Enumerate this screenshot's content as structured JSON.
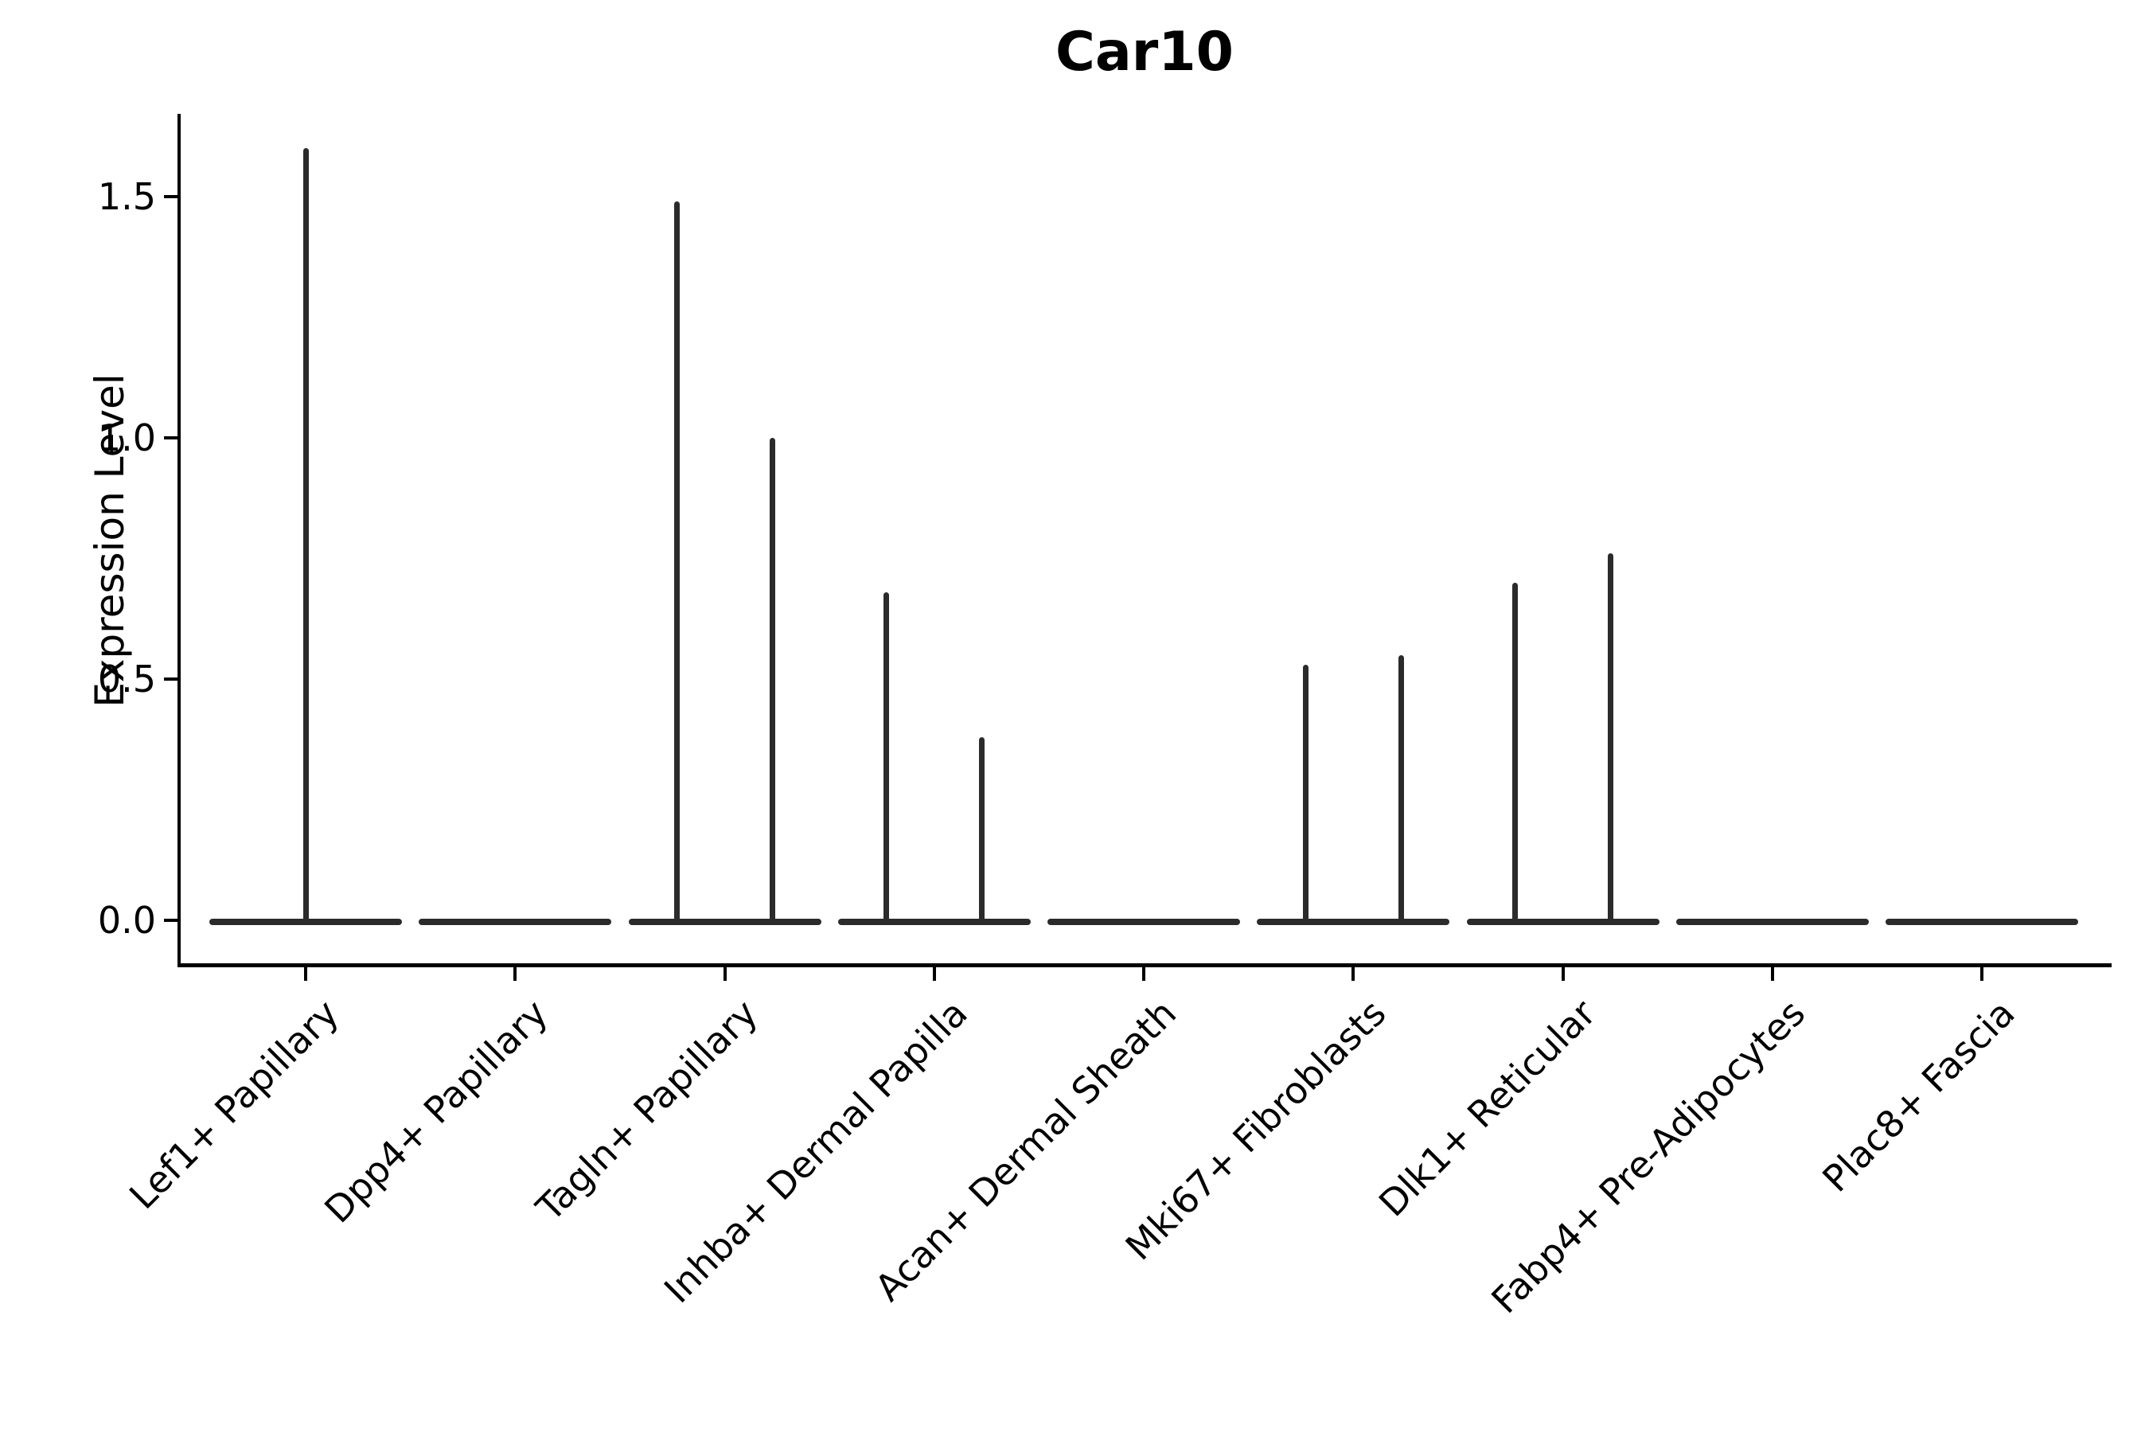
{
  "title": "Car10",
  "y_axis": {
    "label": "Expression Level",
    "ticks": [
      {
        "value": 0.0,
        "label": "0.0"
      },
      {
        "value": 0.5,
        "label": "0.5"
      },
      {
        "value": 1.0,
        "label": "1.0"
      },
      {
        "value": 1.5,
        "label": "1.5"
      }
    ]
  },
  "colors": {
    "violin": "#2b2b2b",
    "axis": "#000000",
    "text": "#000000",
    "background": "#ffffff"
  },
  "chart_data": {
    "type": "violin",
    "title": "Car10",
    "xlabel": "",
    "ylabel": "Expression Level",
    "ylim": [
      -0.09,
      1.67
    ],
    "yticks": [
      0.0,
      0.5,
      1.0,
      1.5
    ],
    "grid": false,
    "legend": false,
    "categories": [
      "Lef1+ Papillary",
      "Dpp4+ Papillary",
      "Tagln+ Papillary",
      "Inhba+ Dermal Papilla",
      "Acan+ Dermal Sheath",
      "Mki67+ Fibroblasts",
      "Dlk1+ Reticular",
      "Fabp4+ Pre-Adipocytes",
      "Plac8+ Fascia"
    ],
    "description": "Violin plot of Car10 expression; each group shows a flat density pancake at 0 with thin vertical spikes up to the maximum expressed values. dx is the horizontal spike offset (px) from the group center.",
    "violins": [
      {
        "category": "Lef1+ Papillary",
        "baseline": 0,
        "spikes": [
          {
            "dx": 0,
            "max": 1.6
          }
        ]
      },
      {
        "category": "Dpp4+ Papillary",
        "baseline": 0,
        "spikes": []
      },
      {
        "category": "Tagln+ Papillary",
        "baseline": 0,
        "spikes": [
          {
            "dx": -60,
            "max": 1.49
          },
          {
            "dx": 60,
            "max": 1.0
          }
        ]
      },
      {
        "category": "Inhba+ Dermal Papilla",
        "baseline": 0,
        "spikes": [
          {
            "dx": -60,
            "max": 0.68
          },
          {
            "dx": 60,
            "max": 0.38
          }
        ]
      },
      {
        "category": "Acan+ Dermal Sheath",
        "baseline": 0,
        "spikes": []
      },
      {
        "category": "Mki67+ Fibroblasts",
        "baseline": 0,
        "spikes": [
          {
            "dx": -60,
            "max": 0.53
          },
          {
            "dx": 60,
            "max": 0.55
          }
        ]
      },
      {
        "category": "Dlk1+ Reticular",
        "baseline": 0,
        "spikes": [
          {
            "dx": -60,
            "max": 0.7
          },
          {
            "dx": 60,
            "max": 0.76
          }
        ]
      },
      {
        "category": "Fabp4+ Pre-Adipocytes",
        "baseline": 0,
        "spikes": []
      },
      {
        "category": "Plac8+ Fascia",
        "baseline": 0,
        "spikes": []
      }
    ]
  }
}
